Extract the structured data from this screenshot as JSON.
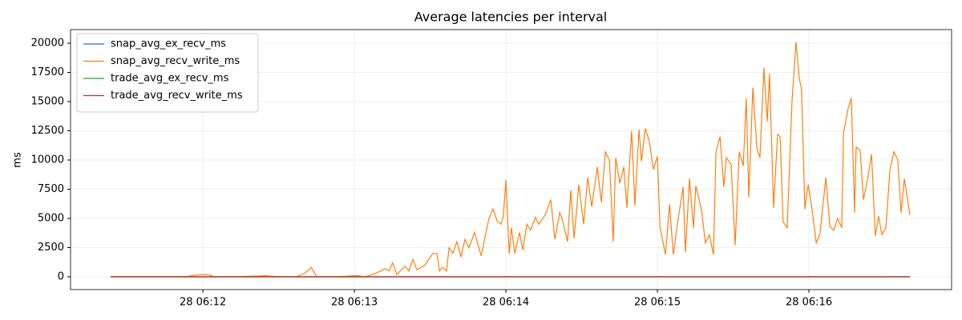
{
  "chart_data": {
    "type": "line",
    "title": "Average latencies per interval",
    "y_label": "ms",
    "x": [
      23.5,
      33.7,
      43.2,
      52.7,
      57.5,
      61.6,
      64.8,
      74.9,
      85.1,
      89.2,
      97.1,
      100.3,
      102.9,
      105.1,
      113.0,
      121.0,
      124.1,
      127.3,
      130.5,
      132.1,
      133.7,
      135.2,
      136.8,
      140,
      141.6,
      143.2,
      144.8,
      147.9,
      151.1,
      152.7,
      153.7,
      154.9,
      156.5,
      157.5,
      159,
      160.6,
      162.2,
      163.8,
      165.4,
      167.6,
      170.2,
      173.3,
      174.9,
      176.5,
      178.1,
      179,
      180,
      181.3,
      182.2,
      183.5,
      185.4,
      186.7,
      188.3,
      189.8,
      191.7,
      193,
      195.6,
      197.8,
      199.4,
      201.3,
      202.5,
      204.4,
      205.7,
      207,
      208.9,
      210.8,
      212.4,
      214,
      216.2,
      217.8,
      219.4,
      221,
      222.5,
      223.5,
      225.1,
      226.7,
      227.9,
      229.8,
      231.1,
      232.7,
      233.7,
      235.2,
      236.8,
      238.4,
      240,
      241,
      243.2,
      244.8,
      246.3,
      247.9,
      250.2,
      251.1,
      252.7,
      254.3,
      255.2,
      257.5,
      259,
      260.6,
      262.2,
      263.2,
      264.8,
      266.3,
      267.3,
      269.2,
      270.8,
      272.4,
      274,
      275.2,
      276.2,
      277.8,
      279.4,
      280.6,
      282.2,
      283.5,
      284.4,
      286,
      287.6,
      288.6,
      289.8,
      291.4,
      293.3,
      294.9,
      296.2,
      297.1,
      298.4,
      299.7,
      301,
      302.9,
      304.4,
      306.7,
      308.3,
      309.8,
      311.4,
      313,
      313.7,
      315.6,
      316.8,
      318.1,
      318.7,
      320.3,
      321.6,
      323.2,
      324.8,
      326.3,
      327.6,
      328.9,
      330.5,
      332.1,
      333.7,
      335.2,
      336.5,
      337.8,
      340
    ],
    "series": [
      {
        "name": "snap_avg_ex_recv_ms",
        "color": "#1f77b4",
        "values": [
          0,
          0,
          0,
          0,
          0,
          0,
          0,
          0,
          0,
          0,
          0,
          0,
          0,
          0,
          0,
          0,
          0,
          0,
          0,
          0,
          0,
          0,
          0,
          0,
          0,
          0,
          0,
          0,
          0,
          0,
          0,
          0,
          0,
          0,
          0,
          0,
          0,
          0,
          0,
          0,
          0,
          0,
          0,
          0,
          0,
          0,
          0,
          0,
          0,
          0,
          0,
          0,
          0,
          0,
          0,
          0,
          0,
          0,
          0,
          0,
          0,
          0,
          0,
          0,
          0,
          0,
          0,
          0,
          0,
          0,
          0,
          0,
          0,
          0,
          0,
          0,
          0,
          0,
          0,
          0,
          0,
          0,
          0,
          0,
          0,
          0,
          0,
          0,
          0,
          0,
          0,
          0,
          0,
          0,
          0,
          0,
          0,
          0,
          0,
          0,
          0,
          0,
          0,
          0,
          0,
          0,
          0,
          0,
          0,
          0,
          0,
          0,
          0,
          0,
          0,
          0,
          0,
          0,
          0,
          0,
          0,
          0,
          0,
          0,
          0,
          0,
          0,
          0,
          0,
          0,
          0,
          0,
          0,
          0,
          0,
          0,
          0,
          0,
          0,
          0,
          0,
          0,
          0,
          0,
          0,
          0,
          0,
          0,
          0,
          0,
          0,
          0,
          0
        ]
      },
      {
        "name": "snap_avg_recv_write_ms",
        "color": "#ff7f0e",
        "values": [
          0,
          0,
          10,
          0,
          150,
          200,
          0,
          20,
          100,
          20,
          0,
          300,
          800,
          0,
          0,
          100,
          0,
          200,
          500,
          700,
          500,
          1200,
          200,
          900,
          500,
          1500,
          600,
          1000,
          2000,
          2000,
          500,
          800,
          500,
          2500,
          2000,
          3000,
          1700,
          3200,
          2500,
          3800,
          1800,
          5000,
          5800,
          4800,
          4500,
          5200,
          8300,
          2000,
          4200,
          2000,
          3800,
          2300,
          4500,
          4000,
          5100,
          4500,
          5300,
          6600,
          3200,
          5500,
          4800,
          3000,
          7400,
          3300,
          7900,
          4500,
          8500,
          6000,
          9400,
          6400,
          10700,
          10000,
          3000,
          10200,
          8000,
          9400,
          5900,
          12500,
          6100,
          12600,
          9900,
          12700,
          11600,
          9200,
          10300,
          4300,
          1900,
          6200,
          1900,
          4500,
          7700,
          2100,
          8400,
          4200,
          7800,
          5700,
          2900,
          3600,
          1900,
          10700,
          12000,
          7700,
          10200,
          9600,
          2700,
          10700,
          9500,
          15300,
          6800,
          16200,
          11000,
          10200,
          17900,
          13300,
          17400,
          5900,
          12200,
          12000,
          4700,
          4200,
          15000,
          20100,
          17000,
          16000,
          5800,
          7900,
          6200,
          2900,
          3700,
          8500,
          4300,
          4000,
          5000,
          4200,
          12300,
          14500,
          15300,
          5500,
          11100,
          10800,
          6600,
          8300,
          10500,
          3500,
          5200,
          3600,
          4200,
          9200,
          10700,
          10000,
          5500,
          8400,
          5300
        ]
      },
      {
        "name": "trade_avg_ex_recv_ms",
        "color": "#2ca02c",
        "values": [
          0,
          0,
          0,
          0,
          0,
          0,
          0,
          0,
          0,
          0,
          0,
          0,
          0,
          0,
          0,
          0,
          0,
          0,
          0,
          0,
          0,
          0,
          0,
          0,
          0,
          0,
          0,
          0,
          0,
          0,
          0,
          0,
          0,
          0,
          0,
          0,
          0,
          0,
          0,
          0,
          0,
          0,
          0,
          0,
          0,
          0,
          0,
          0,
          0,
          0,
          0,
          0,
          0,
          0,
          0,
          0,
          0,
          0,
          0,
          0,
          0,
          0,
          0,
          0,
          0,
          0,
          0,
          0,
          0,
          0,
          0,
          0,
          0,
          0,
          0,
          0,
          0,
          0,
          0,
          0,
          0,
          0,
          0,
          0,
          0,
          0,
          0,
          0,
          0,
          0,
          0,
          0,
          0,
          0,
          0,
          0,
          0,
          0,
          0,
          0,
          0,
          0,
          0,
          0,
          0,
          0,
          0,
          0,
          0,
          0,
          0,
          0,
          0,
          0,
          0,
          0,
          0,
          0,
          0,
          0,
          0,
          0,
          0,
          0,
          0,
          0,
          0,
          0,
          0,
          0,
          0,
          0,
          0,
          0,
          0,
          0,
          0,
          0,
          0,
          0,
          0,
          0,
          0,
          0,
          0,
          0,
          0,
          0,
          0,
          0,
          0,
          0,
          0
        ]
      },
      {
        "name": "trade_avg_recv_write_ms",
        "color": "#d62728",
        "values": [
          0,
          0,
          0,
          0,
          0,
          0,
          0,
          0,
          0,
          0,
          0,
          0,
          0,
          0,
          0,
          0,
          0,
          0,
          0,
          0,
          0,
          0,
          0,
          0,
          0,
          0,
          0,
          0,
          0,
          0,
          0,
          0,
          0,
          0,
          0,
          0,
          0,
          0,
          0,
          0,
          0,
          0,
          0,
          0,
          0,
          0,
          0,
          0,
          0,
          0,
          0,
          0,
          0,
          0,
          0,
          0,
          0,
          0,
          0,
          0,
          0,
          0,
          0,
          0,
          0,
          0,
          0,
          0,
          0,
          0,
          0,
          0,
          0,
          0,
          0,
          0,
          0,
          0,
          0,
          0,
          0,
          0,
          0,
          0,
          0,
          0,
          0,
          0,
          0,
          0,
          0,
          0,
          0,
          0,
          0,
          0,
          0,
          0,
          0,
          0,
          0,
          0,
          0,
          0,
          0,
          0,
          0,
          0,
          0,
          0,
          0,
          0,
          0,
          0,
          0,
          0,
          0,
          0,
          0,
          0,
          0,
          0,
          0,
          0,
          0,
          0,
          0,
          0,
          0,
          0,
          0,
          0,
          0,
          0,
          0,
          0,
          0,
          0,
          0,
          0,
          0,
          0,
          0,
          0,
          0,
          0,
          0,
          0,
          0,
          0,
          0,
          0,
          0
        ]
      }
    ],
    "xlim": [
      7.6,
      356.5
    ],
    "xticks": [
      {
        "value": 60,
        "label": "28 06:12"
      },
      {
        "value": 120,
        "label": "28 06:13"
      },
      {
        "value": 180,
        "label": "28 06:14"
      },
      {
        "value": 240,
        "label": "28 06:15"
      },
      {
        "value": 300,
        "label": "28 06:16"
      }
    ],
    "ylim": [
      -1096,
      21164
    ],
    "yticks": [
      0,
      2500,
      5000,
      7500,
      10000,
      12500,
      15000,
      17500,
      20000
    ],
    "grid": true,
    "legend": "upper-left"
  }
}
